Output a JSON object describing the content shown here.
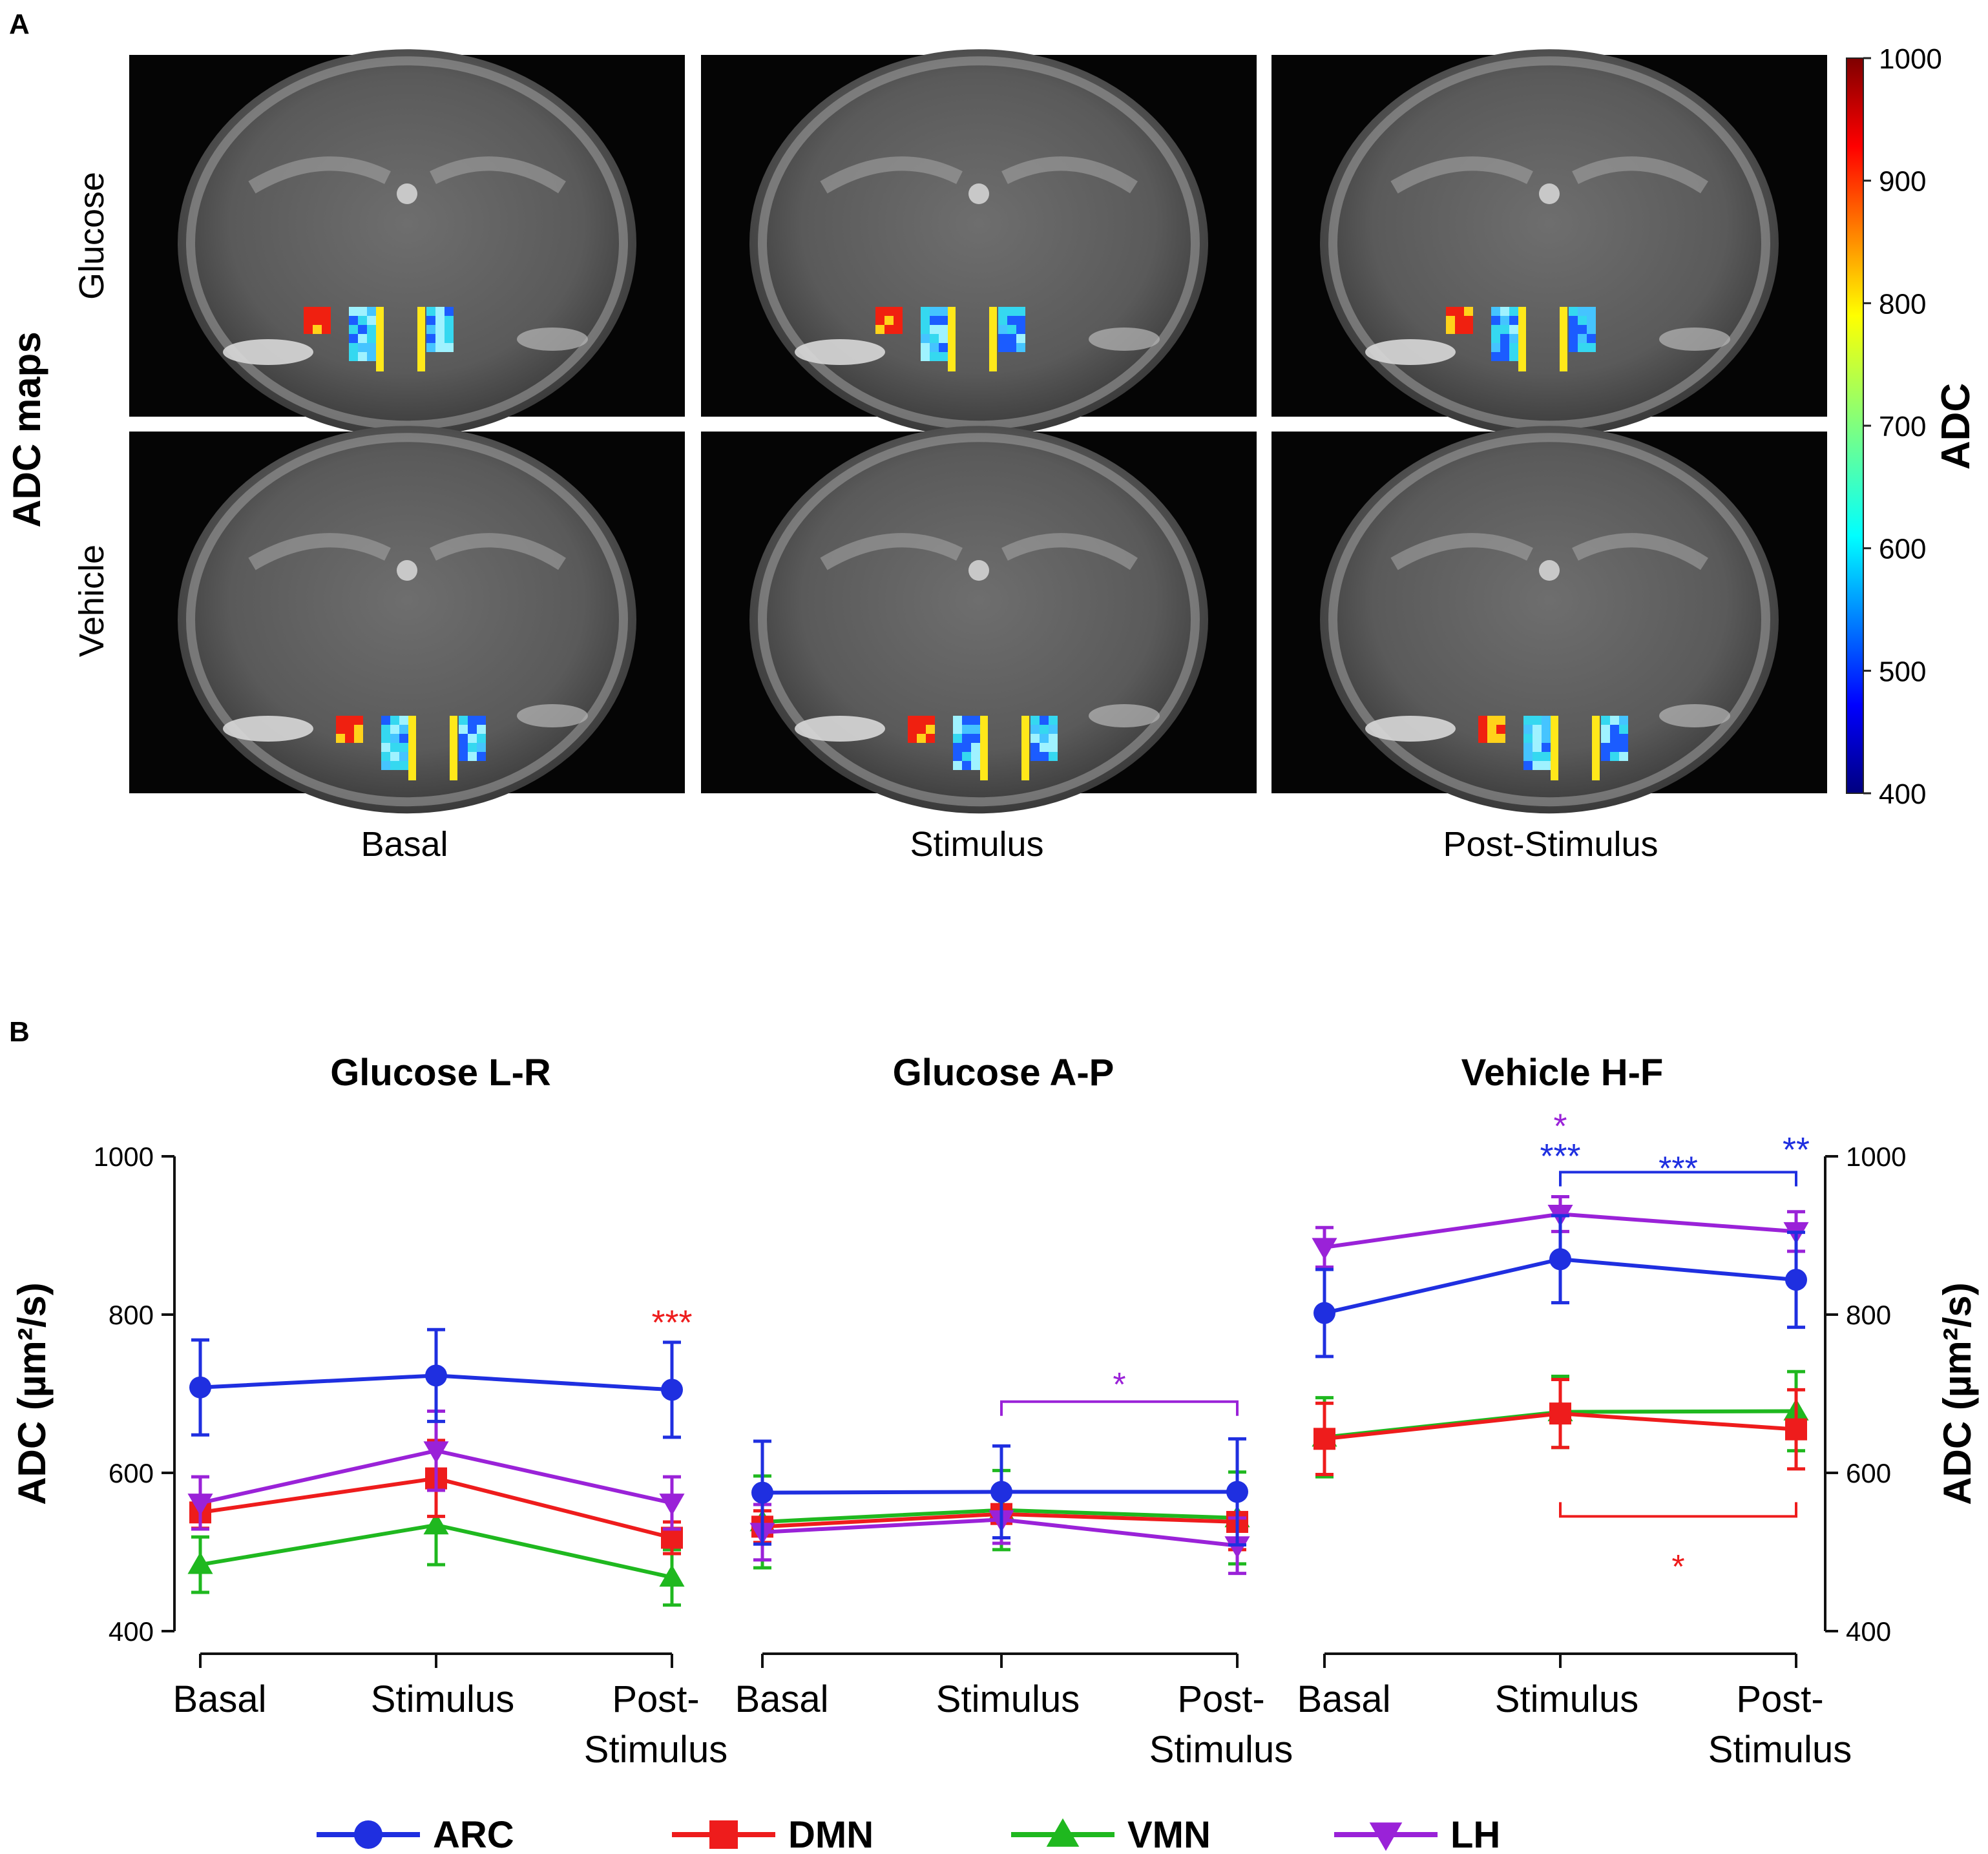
{
  "panel_a": {
    "letter": "A",
    "section_label": "ADC maps",
    "row_labels": [
      "Glucose",
      "Vehicle"
    ],
    "col_labels": [
      "Basal",
      "Stimulus",
      "Post-Stimulus"
    ],
    "colorbar": {
      "label": "ADC",
      "min": 400,
      "max": 1000,
      "ticks": [
        400,
        500,
        600,
        700,
        800,
        900,
        1000
      ]
    }
  },
  "panel_b": {
    "letter": "B"
  },
  "colors": {
    "ARC": "#1f2fe0",
    "DMN": "#ee1c1c",
    "VMN": "#1fb81f",
    "LH": "#9a22d8",
    "axis": "#111111"
  },
  "chart_data": [
    {
      "type": "line",
      "title": "Glucose L-R",
      "ylabel": "ADC (µm²/s)",
      "ylim": [
        400,
        1000
      ],
      "yticks": [
        400,
        600,
        800,
        1000
      ],
      "categories": [
        "Basal",
        "Stimulus",
        "Post-Stimulus"
      ],
      "category_labels": [
        [
          "Basal"
        ],
        [
          "Stimulus"
        ],
        [
          "Post-",
          "Stimulus"
        ]
      ],
      "series": [
        {
          "name": "ARC",
          "values": [
            708,
            723,
            705
          ],
          "errors": [
            60,
            58,
            60
          ]
        },
        {
          "name": "DMN",
          "values": [
            550,
            593,
            518
          ],
          "errors": [
            20,
            48,
            20
          ]
        },
        {
          "name": "VMN",
          "values": [
            484,
            534,
            468
          ],
          "errors": [
            35,
            50,
            35
          ]
        },
        {
          "name": "LH",
          "values": [
            562,
            628,
            562
          ],
          "errors": [
            33,
            50,
            33
          ]
        }
      ],
      "annotations": [
        {
          "text": "***",
          "series": "DMN",
          "category": 2,
          "y": 790
        }
      ],
      "brackets": []
    },
    {
      "type": "line",
      "title": "Glucose A-P",
      "ylim": [
        400,
        1000
      ],
      "categories": [
        "Basal",
        "Stimulus",
        "Post-Stimulus"
      ],
      "category_labels": [
        [
          "Basal"
        ],
        [
          "Stimulus"
        ],
        [
          "Post-",
          "Stimulus"
        ]
      ],
      "series": [
        {
          "name": "ARC",
          "values": [
            575,
            576,
            576
          ],
          "errors": [
            65,
            58,
            67
          ]
        },
        {
          "name": "DMN",
          "values": [
            532,
            548,
            538
          ],
          "errors": [
            20,
            30,
            35
          ]
        },
        {
          "name": "VMN",
          "values": [
            538,
            553,
            543
          ],
          "errors": [
            58,
            50,
            58
          ]
        },
        {
          "name": "LH",
          "values": [
            525,
            541,
            508
          ],
          "errors": [
            35,
            30,
            35
          ]
        }
      ],
      "annotations": [],
      "brackets": [
        {
          "from": 1,
          "to": 2,
          "y": 690,
          "tick_down": true,
          "label": "*",
          "label_y": 715,
          "series": "LH"
        }
      ]
    },
    {
      "type": "line",
      "title": "Vehicle H-F",
      "ylabel": "ADC (µm²/s)",
      "ylim": [
        400,
        1000
      ],
      "yticks": [
        400,
        600,
        800,
        1000
      ],
      "categories": [
        "Basal",
        "Stimulus",
        "Post-Stimulus"
      ],
      "category_labels": [
        [
          "Basal"
        ],
        [
          "Stimulus"
        ],
        [
          "Post-",
          "Stimulus"
        ]
      ],
      "series": [
        {
          "name": "ARC",
          "values": [
            802,
            870,
            844
          ],
          "errors": [
            55,
            55,
            60
          ]
        },
        {
          "name": "DMN",
          "values": [
            643,
            675,
            655
          ],
          "errors": [
            45,
            43,
            50
          ]
        },
        {
          "name": "VMN",
          "values": [
            645,
            677,
            678
          ],
          "errors": [
            50,
            45,
            50
          ]
        },
        {
          "name": "LH",
          "values": [
            885,
            927,
            905
          ],
          "errors": [
            25,
            22,
            25
          ]
        }
      ],
      "annotations": [
        {
          "text": "*",
          "series": "LH",
          "category": 1,
          "y": 1038
        },
        {
          "text": "***",
          "series": "ARC",
          "category": 1,
          "y": 1000
        },
        {
          "text": "**",
          "series": "ARC",
          "category": 2,
          "y": 1008
        }
      ],
      "brackets": [
        {
          "from": 1,
          "to": 2,
          "y": 980,
          "tick_down": true,
          "label": "***",
          "label_y": 988,
          "series": "ARC"
        },
        {
          "from": 1,
          "to": 2,
          "y": 545,
          "tick_down": false,
          "label": "*",
          "label_y": 485,
          "series": "DMN"
        }
      ]
    }
  ],
  "legend": [
    {
      "name": "ARC",
      "marker": "circle"
    },
    {
      "name": "DMN",
      "marker": "square"
    },
    {
      "name": "VMN",
      "marker": "triangle-up"
    },
    {
      "name": "LH",
      "marker": "triangle-down"
    }
  ]
}
